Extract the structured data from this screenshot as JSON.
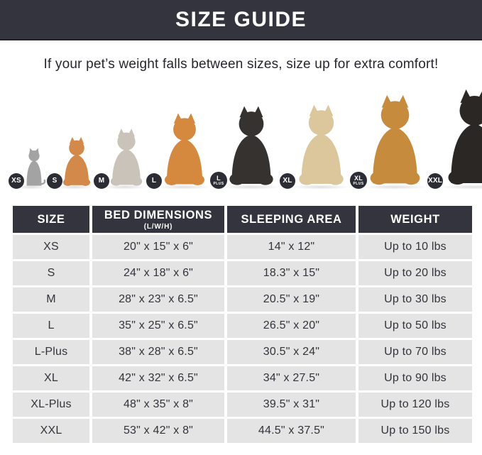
{
  "header": {
    "title": "SIZE GUIDE"
  },
  "subtitle": "If your pet’s weight falls between sizes, size up for extra comfort!",
  "colors": {
    "banner_bg": "#34343f",
    "table_header_bg": "#34343f",
    "row_bg": "#e4e4e4",
    "badge_bg": "#2c2c35",
    "text_dark": "#33333c"
  },
  "animals": [
    {
      "badge_main": "XS",
      "badge_sub": "",
      "icon": "cat-icon",
      "breed": "cat",
      "color": "#a3a3a3",
      "height": 56
    },
    {
      "badge_main": "S",
      "badge_sub": "",
      "icon": "dog-icon",
      "breed": "pomeranian",
      "color": "#d3894a",
      "height": 72
    },
    {
      "badge_main": "M",
      "badge_sub": "",
      "icon": "dog-icon",
      "breed": "french-bulldog",
      "color": "#c9c3ba",
      "height": 84
    },
    {
      "badge_main": "L",
      "badge_sub": "",
      "icon": "dog-icon",
      "breed": "shiba-inu",
      "color": "#d5893f",
      "height": 106
    },
    {
      "badge_main": "L",
      "badge_sub": "PLUS",
      "icon": "dog-icon",
      "breed": "border-collie",
      "color": "#35322f",
      "height": 116
    },
    {
      "badge_main": "XL",
      "badge_sub": "",
      "icon": "dog-icon",
      "breed": "labrador",
      "color": "#dcc79c",
      "height": 118
    },
    {
      "badge_main": "XL",
      "badge_sub": "PLUS",
      "icon": "dog-icon",
      "breed": "golden-retriever",
      "color": "#c68b3c",
      "height": 132
    },
    {
      "badge_main": "XXL",
      "badge_sub": "",
      "icon": "dog-icon",
      "breed": "doberman",
      "color": "#2a2725",
      "height": 140
    }
  ],
  "table": {
    "columns": [
      "SIZE",
      "BED DIMENSIONS",
      "SLEEPING AREA",
      "WEIGHT"
    ],
    "dimensions_sub": "(L/W/H)",
    "rows": [
      [
        "XS",
        "20\" x 15\" x 6\"",
        "14\" x 12\"",
        "Up to 10 lbs"
      ],
      [
        "S",
        "24\" x 18\" x 6\"",
        "18.3\" x 15\"",
        "Up to 20 lbs"
      ],
      [
        "M",
        "28\" x 23\" x 6.5\"",
        "20.5\" x 19\"",
        "Up to 30 lbs"
      ],
      [
        "L",
        "35\" x 25\" x 6.5\"",
        "26.5\" x 20\"",
        "Up to 50 lbs"
      ],
      [
        "L-Plus",
        "38\" x 28\" x 6.5\"",
        "30.5\" x 24\"",
        "Up to 70 lbs"
      ],
      [
        "XL",
        "42\" x 32\" x 6.5\"",
        "34\" x 27.5\"",
        "Up to 90 lbs"
      ],
      [
        "XL-Plus",
        "48\" x 35\" x 8\"",
        "39.5\" x 31\"",
        "Up to 120 lbs"
      ],
      [
        "XXL",
        "53\" x 42\" x 8\"",
        "44.5\" x 37.5\"",
        "Up to 150 lbs"
      ]
    ]
  }
}
